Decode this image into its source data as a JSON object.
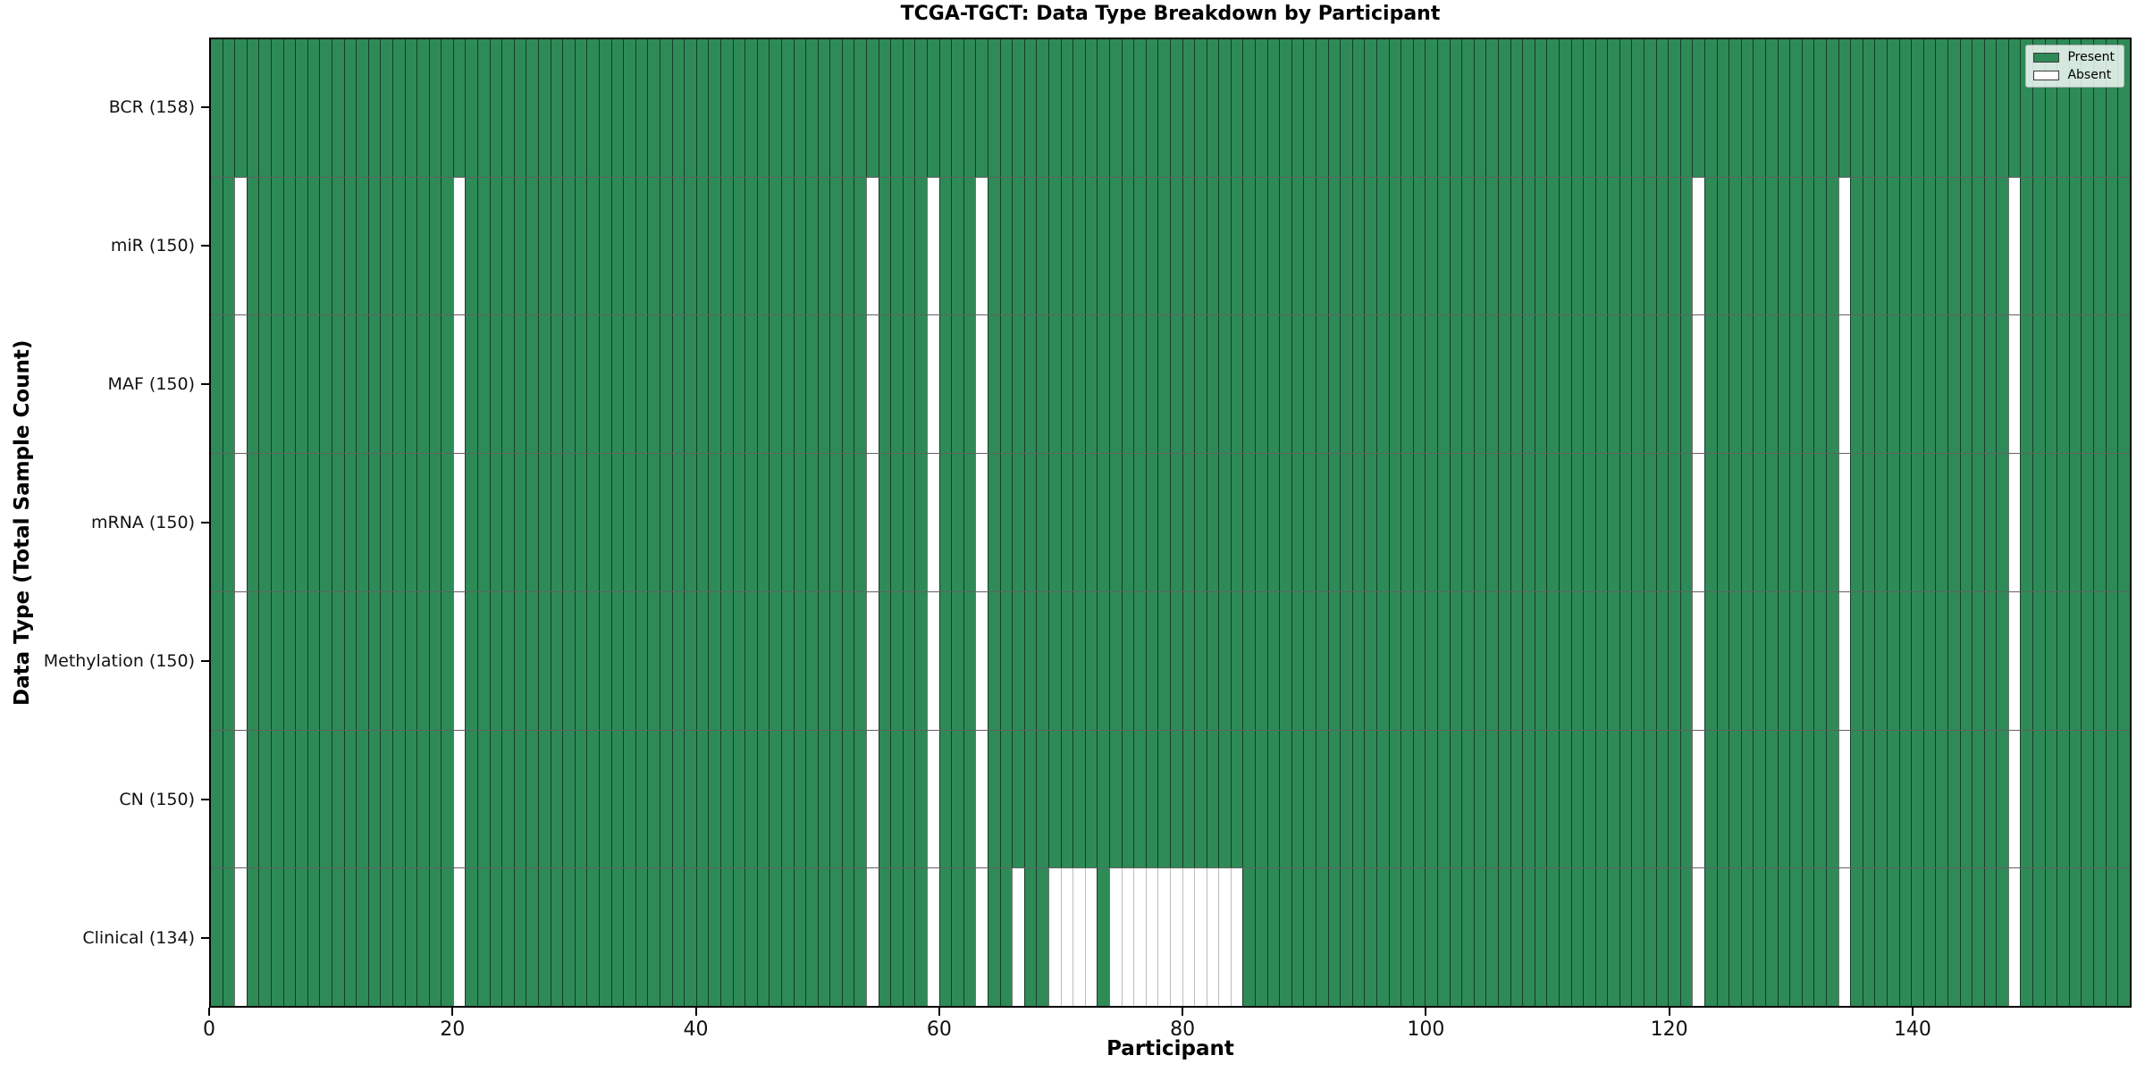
{
  "chart_data": {
    "type": "heatmap",
    "title": "TCGA-TGCT: Data Type Breakdown by Participant",
    "xlabel": "Participant",
    "ylabel": "Data Type (Total Sample Count)",
    "x_ticks": [
      0,
      20,
      40,
      60,
      80,
      100,
      120,
      140
    ],
    "x_range": [
      0,
      158
    ],
    "n_participants": 158,
    "grid": "off",
    "legend": {
      "position": "upper right",
      "entries": [
        {
          "label": "Present",
          "color": "#2e8b57"
        },
        {
          "label": "Absent",
          "color": "#ffffff"
        }
      ]
    },
    "rows": [
      {
        "label": "BCR (158)",
        "data_type": "BCR",
        "total_samples": 158,
        "absent_participants": []
      },
      {
        "label": "miR (150)",
        "data_type": "miR",
        "total_samples": 150,
        "absent_participants": [
          2,
          20,
          54,
          59,
          63,
          122,
          134,
          148
        ]
      },
      {
        "label": "MAF (150)",
        "data_type": "MAF",
        "total_samples": 150,
        "absent_participants": [
          2,
          20,
          54,
          59,
          63,
          122,
          134,
          148
        ]
      },
      {
        "label": "mRNA (150)",
        "data_type": "mRNA",
        "total_samples": 150,
        "absent_participants": [
          2,
          20,
          54,
          59,
          63,
          122,
          134,
          148
        ]
      },
      {
        "label": "Methylation (150)",
        "data_type": "Methylation",
        "total_samples": 150,
        "absent_participants": [
          2,
          20,
          54,
          59,
          63,
          122,
          134,
          148
        ]
      },
      {
        "label": "CN (150)",
        "data_type": "CN",
        "total_samples": 150,
        "absent_participants": [
          2,
          20,
          54,
          59,
          63,
          122,
          134,
          148
        ]
      },
      {
        "label": "Clinical (134)",
        "data_type": "Clinical",
        "total_samples": 134,
        "absent_participants": [
          2,
          20,
          54,
          59,
          63,
          66,
          69,
          70,
          71,
          72,
          74,
          75,
          76,
          77,
          78,
          79,
          80,
          81,
          82,
          83,
          84,
          122,
          134,
          148
        ]
      }
    ],
    "colors": {
      "present": "#2e8b57",
      "absent": "#ffffff",
      "bar_edge_on_green": "rgba(0,0,0,0.55)",
      "bar_edge_on_white": "#bdbdbd",
      "row_separator": "rgba(0,0,0,0.62)",
      "frame": "#000000"
    }
  }
}
